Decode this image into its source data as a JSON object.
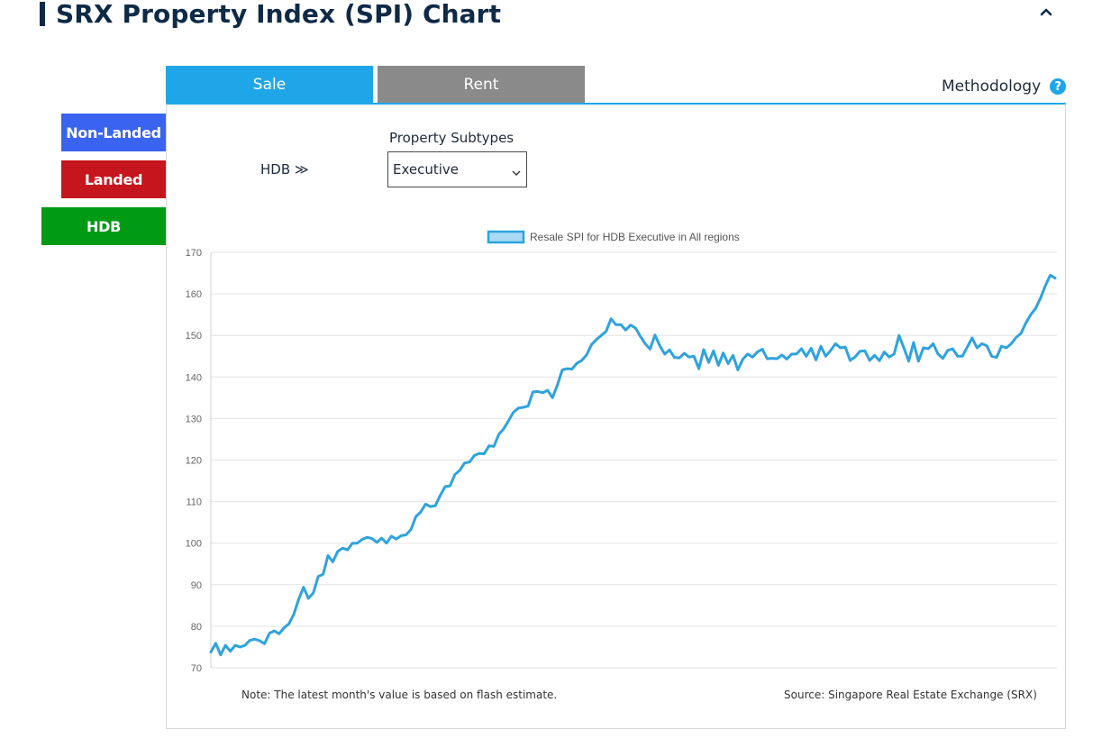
{
  "header": {
    "title": "SRX Property Index (SPI) Chart",
    "collapse_icon": "chevron-up-icon"
  },
  "tabs": [
    {
      "label": "Sale",
      "active": true
    },
    {
      "label": "Rent",
      "active": false
    }
  ],
  "methodology": {
    "label": "Methodology",
    "icon": "help-icon"
  },
  "property_types": [
    {
      "label": "Non-Landed",
      "color": "#3a63f0"
    },
    {
      "label": "Landed",
      "color": "#c4161c"
    },
    {
      "label": "HDB",
      "color": "#009a14",
      "active": true
    }
  ],
  "filters": {
    "type_label": "HDB ≫",
    "subtype_label": "Property Subtypes",
    "subtype_value": "Executive"
  },
  "footer": {
    "note": "Note: The latest month's value is based on flash estimate.",
    "source": "Source: Singapore Real Estate Exchange (SRX)"
  },
  "chart_data": {
    "type": "line",
    "series": [
      {
        "name": "Resale SPI for HDB Executive in All regions",
        "color": "#2ea3dd",
        "values": [
          73.8,
          75.9,
          73.1,
          75.4,
          74.0,
          75.4,
          75.0,
          75.4,
          76.6,
          76.9,
          76.5,
          75.8,
          78.3,
          78.9,
          78.2,
          79.6,
          80.6,
          82.9,
          86.5,
          89.4,
          86.7,
          88.0,
          92.0,
          92.5,
          97.0,
          95.5,
          98.0,
          98.8,
          98.4,
          100.0,
          100.0,
          100.9,
          101.4,
          101.1,
          100.2,
          101.2,
          100.0,
          101.7,
          101.0,
          101.8,
          102.0,
          103.3,
          106.4,
          107.5,
          109.4,
          108.8,
          109.0,
          111.5,
          113.6,
          113.8,
          116.5,
          117.5,
          119.3,
          119.5,
          121.1,
          121.6,
          121.5,
          123.4,
          123.3,
          126.2,
          127.5,
          129.5,
          131.5,
          132.5,
          132.7,
          133.0,
          136.4,
          136.5,
          136.2,
          136.8,
          135.0,
          138.0,
          141.7,
          142.0,
          141.9,
          143.3,
          144.0,
          145.3,
          147.8,
          149.0,
          150.0,
          151.0,
          154.0,
          152.6,
          152.6,
          151.3,
          152.5,
          151.8,
          149.8,
          148.0,
          146.7,
          150.1,
          147.5,
          145.5,
          146.5,
          144.7,
          144.6,
          145.7,
          144.8,
          145.0,
          142.0,
          146.6,
          143.5,
          146.3,
          142.8,
          145.8,
          143.2,
          145.2,
          141.7,
          144.3,
          145.5,
          144.8,
          146.0,
          146.7,
          144.4,
          144.5,
          144.4,
          145.3,
          144.3,
          145.5,
          145.5,
          146.8,
          145.0,
          146.9,
          144.1,
          147.4,
          145.0,
          146.4,
          148.0,
          147.0,
          147.2,
          144.0,
          144.8,
          146.2,
          146.3,
          144.0,
          145.2,
          143.9,
          146.0,
          144.8,
          145.5,
          150.0,
          147.0,
          143.8,
          148.3,
          143.8,
          147.0,
          146.8,
          148.0,
          145.5,
          144.5,
          146.4,
          146.8,
          145.0,
          145.0,
          147.2,
          149.4,
          147.0,
          148.0,
          147.5,
          145.0,
          144.7,
          147.4,
          147.0,
          148.0,
          149.5,
          150.5,
          153.0,
          155.0,
          156.5,
          159.0,
          162.0,
          164.5,
          163.8
        ]
      }
    ],
    "ylim": [
      70,
      170
    ],
    "yticks": [
      70,
      80,
      90,
      100,
      110,
      120,
      130,
      140,
      150,
      160,
      170
    ],
    "grid": true,
    "legend": "top-center"
  }
}
